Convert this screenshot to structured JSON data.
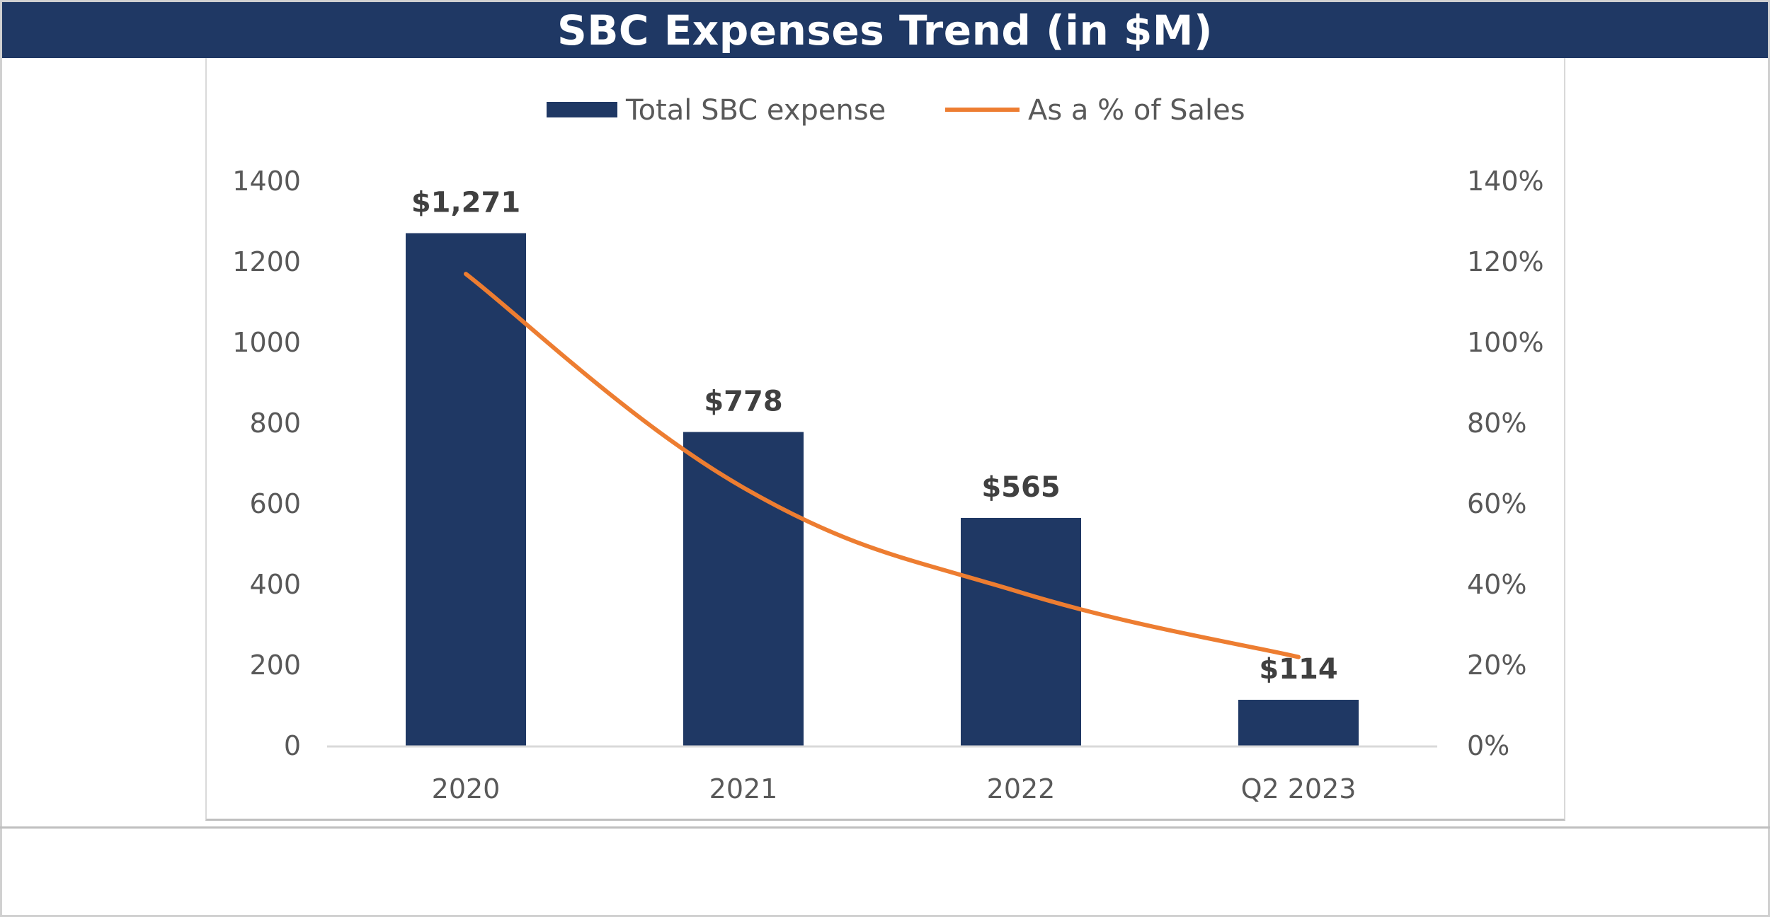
{
  "title": "SBC Expenses Trend (in $M)",
  "colors": {
    "bar": "#1f3864",
    "line": "#ed7d31",
    "title_bg": "#1f3864"
  },
  "chart_data": {
    "type": "bar",
    "title": "SBC Expenses Trend (in $M)",
    "categories": [
      "2020",
      "2021",
      "2022",
      "Q2 2023"
    ],
    "series": [
      {
        "name": "Total SBC expense",
        "type": "bar",
        "axis": "left",
        "values": [
          1271,
          778,
          565,
          114
        ],
        "labels": [
          "$1,271",
          "$778",
          "$565",
          "$114"
        ]
      },
      {
        "name": "As a % of Sales",
        "type": "line",
        "axis": "right",
        "values": [
          117,
          64,
          38,
          22
        ]
      }
    ],
    "y_left": {
      "min": 0,
      "max": 1400,
      "ticks": [
        "0",
        "200",
        "400",
        "600",
        "800",
        "1000",
        "1200",
        "1400"
      ]
    },
    "y_right": {
      "min": 0,
      "max": 140,
      "ticks": [
        "0%",
        "20%",
        "40%",
        "60%",
        "80%",
        "100%",
        "120%",
        "140%"
      ]
    },
    "legend_position": "top",
    "grid": false
  }
}
